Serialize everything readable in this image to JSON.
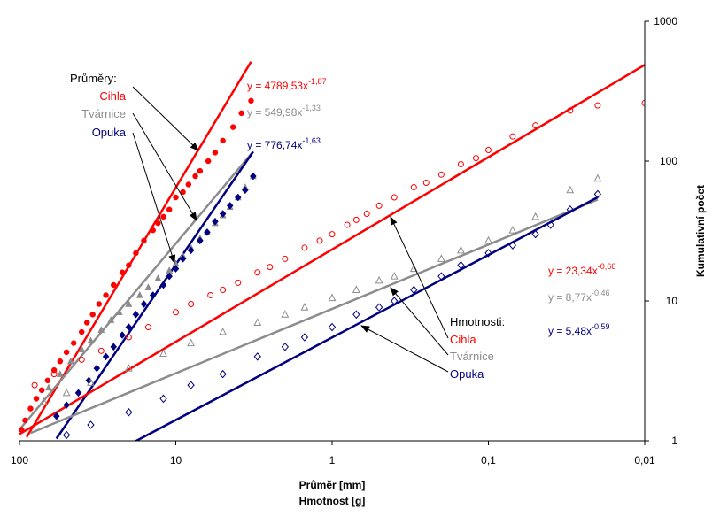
{
  "chart_data": {
    "type": "scatter",
    "x_axis": {
      "scale": "log",
      "reversed": true,
      "range": [
        100,
        0.01
      ],
      "tick_values": [
        100,
        10,
        1,
        0.1,
        0.01
      ],
      "tick_labels": [
        "100",
        "10",
        "1",
        "0,1",
        "0,01"
      ],
      "title_lines": [
        "Průměr [mm]",
        "Hmotnost [g]"
      ]
    },
    "y_axis": {
      "scale": "log",
      "position": "right",
      "range": [
        1,
        1000
      ],
      "tick_values": [
        1,
        10,
        100,
        1000
      ],
      "tick_labels": [
        "1",
        "10",
        "100",
        "1000"
      ],
      "title": "Kumulativní počet"
    },
    "grid": false,
    "colors": {
      "cihla": "#ff0000",
      "tvarnice": "#8c8c8c",
      "opuka": "#000080",
      "axis": "#000000"
    },
    "groups": [
      {
        "heading": "Průměry:",
        "series": [
          {
            "name": "Cihla",
            "color": "#ff0000",
            "marker": "filled-circle",
            "points": [
              [
                3.3,
                270
              ],
              [
                3.8,
                220
              ],
              [
                4.3,
                175
              ],
              [
                5,
                140
              ],
              [
                5.6,
                115
              ],
              [
                6.2,
                100
              ],
              [
                7,
                85
              ],
              [
                7.5,
                78
              ],
              [
                8.3,
                68
              ],
              [
                9,
                60
              ],
              [
                10,
                55
              ],
              [
                11,
                45
              ],
              [
                12,
                40
              ],
              [
                13,
                36
              ],
              [
                14,
                32
              ],
              [
                16,
                27
              ],
              [
                18,
                22
              ],
              [
                20,
                18
              ],
              [
                22,
                16
              ],
              [
                25,
                13
              ],
              [
                28,
                11
              ],
              [
                31,
                9.5
              ],
              [
                34,
                8
              ],
              [
                37,
                7
              ],
              [
                40,
                6
              ],
              [
                45,
                5
              ],
              [
                50,
                4.3
              ],
              [
                55,
                3.7
              ],
              [
                60,
                3.2
              ],
              [
                66,
                2.7
              ],
              [
                72,
                2.3
              ],
              [
                78,
                2
              ],
              [
                85,
                1.7
              ],
              [
                92,
                1.4
              ],
              [
                97,
                1.2
              ]
            ],
            "fit": {
              "equation": "y = 4789,53x",
              "exponent": "-1,87",
              "a": 4789.53,
              "b": -1.87,
              "x_range": [
                3.3,
                90
              ]
            }
          },
          {
            "name": "Tvárnice",
            "color": "#8c8c8c",
            "marker": "filled-triangle",
            "points": [
              [
                3.2,
                78
              ],
              [
                3.6,
                65
              ],
              [
                4,
                55
              ],
              [
                4.5,
                47
              ],
              [
                5,
                41
              ],
              [
                5.6,
                36
              ],
              [
                6.3,
                31
              ],
              [
                7,
                28
              ],
              [
                8,
                24
              ],
              [
                9,
                21
              ],
              [
                10,
                18.5
              ],
              [
                11,
                16.5
              ],
              [
                13,
                14.5
              ],
              [
                15,
                12.5
              ],
              [
                17,
                11
              ],
              [
                20,
                9.5
              ],
              [
                23,
                8.3
              ],
              [
                26,
                7.3
              ],
              [
                30,
                6.2
              ],
              [
                35,
                5.2
              ],
              [
                40,
                4.5
              ],
              [
                47,
                3.7
              ],
              [
                55,
                3
              ],
              [
                65,
                2.4
              ]
            ],
            "fit": {
              "equation": "y = 549,98x",
              "exponent": "-1,33",
              "a": 549.98,
              "b": -1.33,
              "x_range": [
                3.2,
                100
              ]
            }
          },
          {
            "name": "Opuka",
            "color": "#000080",
            "marker": "filled-diamond",
            "points": [
              [
                3.2,
                78
              ],
              [
                3.6,
                62
              ],
              [
                4,
                55
              ],
              [
                4.5,
                48
              ],
              [
                5,
                42
              ],
              [
                5.6,
                37
              ],
              [
                6.3,
                31
              ],
              [
                7,
                27
              ],
              [
                8,
                23
              ],
              [
                9,
                20
              ],
              [
                10,
                17
              ],
              [
                11,
                15
              ],
              [
                12,
                13
              ],
              [
                14,
                11
              ],
              [
                16,
                9.5
              ],
              [
                18,
                8
              ],
              [
                20,
                6.5
              ],
              [
                22,
                5.7
              ],
              [
                25,
                4.7
              ],
              [
                28,
                4
              ],
              [
                32,
                3.3
              ],
              [
                36,
                2.7
              ],
              [
                42,
                2.2
              ],
              [
                50,
                1.8
              ],
              [
                58,
                1.5
              ]
            ],
            "fit": {
              "equation": "y = 776,74x",
              "exponent": "-1,63",
              "a": 776.74,
              "b": -1.63,
              "x_range": [
                3.2,
                58
              ]
            }
          }
        ]
      },
      {
        "heading": "Hmotnosti:",
        "series": [
          {
            "name": "Cihla",
            "color": "#ff0000",
            "marker": "open-circle",
            "points": [
              [
                0.01,
                260
              ],
              [
                0.02,
                250
              ],
              [
                0.03,
                230
              ],
              [
                0.05,
                180
              ],
              [
                0.07,
                150
              ],
              [
                0.1,
                120
              ],
              [
                0.12,
                105
              ],
              [
                0.15,
                95
              ],
              [
                0.2,
                80
              ],
              [
                0.25,
                70
              ],
              [
                0.3,
                65
              ],
              [
                0.4,
                55
              ],
              [
                0.5,
                48
              ],
              [
                0.6,
                42
              ],
              [
                0.7,
                38
              ],
              [
                0.8,
                35
              ],
              [
                1,
                30
              ],
              [
                1.2,
                27
              ],
              [
                1.5,
                24
              ],
              [
                2,
                20
              ],
              [
                2.5,
                17.5
              ],
              [
                3,
                16
              ],
              [
                4,
                13.5
              ],
              [
                5,
                12
              ],
              [
                6,
                11
              ],
              [
                8,
                9.5
              ],
              [
                10,
                8.3
              ],
              [
                15,
                6.5
              ],
              [
                20,
                5.5
              ],
              [
                30,
                4.4
              ],
              [
                40,
                3.8
              ],
              [
                60,
                3
              ],
              [
                80,
                2.5
              ]
            ],
            "fit": {
              "equation": "y = 23,34x",
              "exponent": "-0,66",
              "a": 23.34,
              "b": -0.66,
              "x_range": [
                0.01,
                100
              ]
            }
          },
          {
            "name": "Tvárnice",
            "color": "#8c8c8c",
            "marker": "open-triangle",
            "points": [
              [
                0.02,
                75
              ],
              [
                0.03,
                62
              ],
              [
                0.05,
                40
              ],
              [
                0.07,
                32
              ],
              [
                0.1,
                27
              ],
              [
                0.15,
                23
              ],
              [
                0.2,
                20
              ],
              [
                0.3,
                17
              ],
              [
                0.4,
                15
              ],
              [
                0.5,
                14
              ],
              [
                0.7,
                12
              ],
              [
                1,
                10.5
              ],
              [
                1.5,
                9
              ],
              [
                2,
                8
              ],
              [
                3,
                7
              ],
              [
                5,
                6
              ],
              [
                8,
                5
              ],
              [
                12,
                4.2
              ],
              [
                20,
                3.3
              ],
              [
                35,
                2.6
              ],
              [
                50,
                2.2
              ],
              [
                70,
                1.9
              ]
            ],
            "fit": {
              "equation": "y = 8,77x",
              "exponent": "-0,46",
              "a": 8.77,
              "b": -0.46,
              "x_range": [
                0.02,
                85
              ]
            }
          },
          {
            "name": "Opuka",
            "color": "#000080",
            "marker": "open-diamond",
            "points": [
              [
                0.02,
                58
              ],
              [
                0.03,
                45
              ],
              [
                0.04,
                35
              ],
              [
                0.05,
                30
              ],
              [
                0.07,
                25
              ],
              [
                0.1,
                22
              ],
              [
                0.15,
                18
              ],
              [
                0.2,
                15
              ],
              [
                0.3,
                12
              ],
              [
                0.4,
                10
              ],
              [
                0.5,
                9
              ],
              [
                0.7,
                8
              ],
              [
                1,
                6.5
              ],
              [
                1.5,
                5.5
              ],
              [
                2,
                4.7
              ],
              [
                3,
                4
              ],
              [
                5,
                3
              ],
              [
                8,
                2.5
              ],
              [
                12,
                2
              ],
              [
                20,
                1.6
              ],
              [
                35,
                1.3
              ],
              [
                50,
                1.1
              ]
            ],
            "fit": {
              "equation": "y = 5,48x",
              "exponent": "-0,59",
              "a": 5.48,
              "b": -0.59,
              "x_range": [
                0.02,
                18
              ]
            }
          }
        ]
      }
    ]
  }
}
